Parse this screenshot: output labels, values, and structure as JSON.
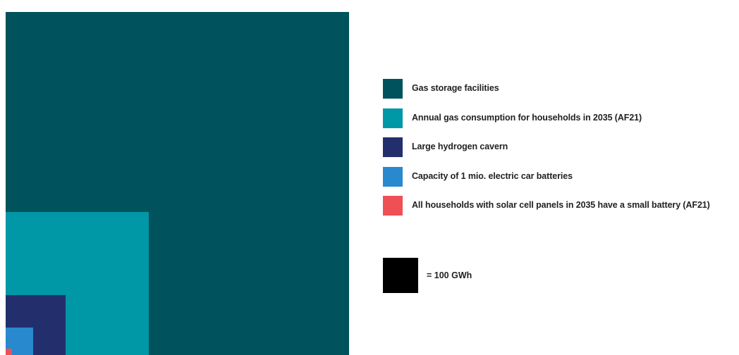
{
  "chart_data": {
    "type": "proportional-area-squares",
    "unit": "GWh",
    "series": [
      {
        "name": "Gas storage facilities",
        "value": 9500,
        "color": "#00525C"
      },
      {
        "name": "Annual gas consumption for households in 2035 (AF21)",
        "value": 1650,
        "color": "#0097A7"
      },
      {
        "name": "Large hydrogen cavern",
        "value": 287,
        "color": "#232F6C"
      },
      {
        "name": "Capacity of 1 mio. electric car batteries",
        "value": 60,
        "color": "#2889CF"
      },
      {
        "name": "All households with solar cell panels in 2035 have a small battery (AF21)",
        "value": 3,
        "color": "#EE5055"
      }
    ],
    "scale_key": {
      "value": 100,
      "label": "=  100 GWh",
      "color": "#000000"
    }
  }
}
